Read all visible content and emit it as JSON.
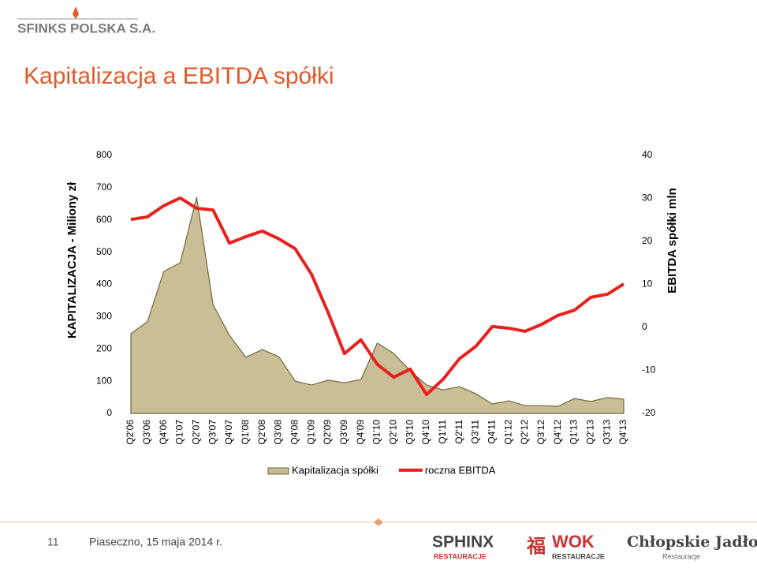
{
  "header": {
    "logo": "SFINKS POLSKA S.A."
  },
  "chart_data": {
    "type": "area-line",
    "title": "Kapitalizacja a EBITDA spółki",
    "y_label": "KAPITALIZACJA - Miliony zł",
    "y2_label": "EBITDA spółki mln",
    "categories": [
      "Q2'06",
      "Q3'06",
      "Q4'06",
      "Q1'07",
      "Q2'07",
      "Q3'07",
      "Q4'07",
      "Q1'08",
      "Q2'08",
      "Q3'08",
      "Q4'08",
      "Q1'09",
      "Q2'09",
      "Q3'09",
      "Q4'09",
      "Q1'10",
      "Q2'10",
      "Q3'10",
      "Q4'10",
      "Q1'11",
      "Q2'11",
      "Q3'11",
      "Q4'11",
      "Q1'12",
      "Q2'12",
      "Q3'12",
      "Q4'12",
      "Q1'13",
      "Q2'13",
      "Q3'13",
      "Q4'13"
    ],
    "series": [
      {
        "name": "Kapitalizacja spółki",
        "kind": "area",
        "color": "#c6bb90",
        "values": [
          247,
          284,
          440,
          467,
          670,
          337,
          242,
          174,
          198,
          176,
          100,
          88,
          103,
          95,
          105,
          218,
          186,
          132,
          88,
          73,
          83,
          61,
          29,
          39,
          24,
          24,
          22,
          46,
          37,
          49,
          44
        ]
      },
      {
        "name": "roczna EBITDA",
        "kind": "line",
        "axis": "y2",
        "color": "#e8211e",
        "values": [
          25.1,
          25.7,
          28.3,
          30.1,
          27.7,
          27.3,
          19.6,
          21.1,
          22.4,
          20.6,
          18.3,
          12.3,
          3.5,
          -6.1,
          -2.9,
          -8.6,
          -11.6,
          -9.7,
          -15.6,
          -12.1,
          -7.3,
          -4.4,
          0.2,
          -0.2,
          -0.9,
          0.7,
          2.8,
          4.0,
          7.0,
          7.7,
          10.1
        ]
      }
    ],
    "ylim": [
      0,
      800
    ],
    "yticks": [
      0,
      100,
      200,
      300,
      400,
      500,
      600,
      700,
      800
    ],
    "y2lim": [
      -20,
      40
    ],
    "y2ticks": [
      -20,
      -10,
      0,
      10,
      20,
      30,
      40
    ],
    "grid": false,
    "legend": "bottom"
  },
  "footer": {
    "page": "11",
    "place_date": "Piaseczno, 15 maja 2014 r.",
    "logos": [
      "SPHINX",
      "RESTAURACJE",
      "福",
      "WOK",
      "RESTAURACJE",
      "Chłopskie Jadło",
      "Restauracje"
    ]
  }
}
